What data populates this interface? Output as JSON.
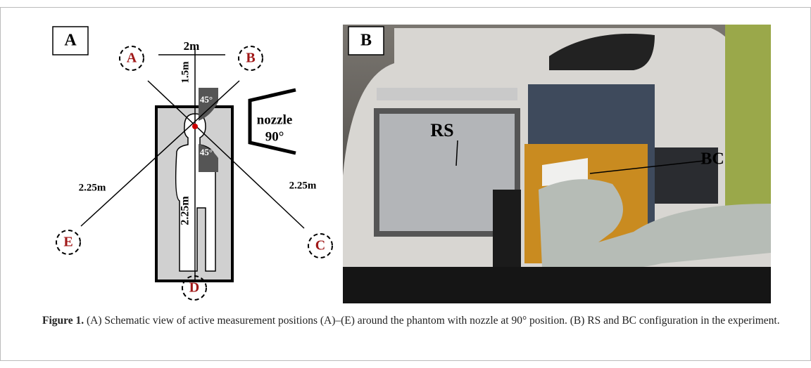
{
  "figure": {
    "label": "Figure 1.",
    "caption": "(A) Schematic view of active measurement positions (A)–(E) around the phantom with nozzle at 90° position. (B) RS and BC configuration in the experiment."
  },
  "panel_a": {
    "label": "A",
    "distance_top": "2m",
    "distance_vertical": "1.5m",
    "angle_upper": "45°",
    "angle_lower": "45°",
    "nozzle": "nozzle",
    "nozzle_angle": "90°",
    "distance_left": "2.25m",
    "distance_right": "2.25m",
    "distance_bottom": "2.25m",
    "positions": [
      "A",
      "B",
      "C",
      "D",
      "E"
    ]
  },
  "panel_b": {
    "label": "B",
    "annotations": [
      "RS",
      "BC"
    ]
  }
}
